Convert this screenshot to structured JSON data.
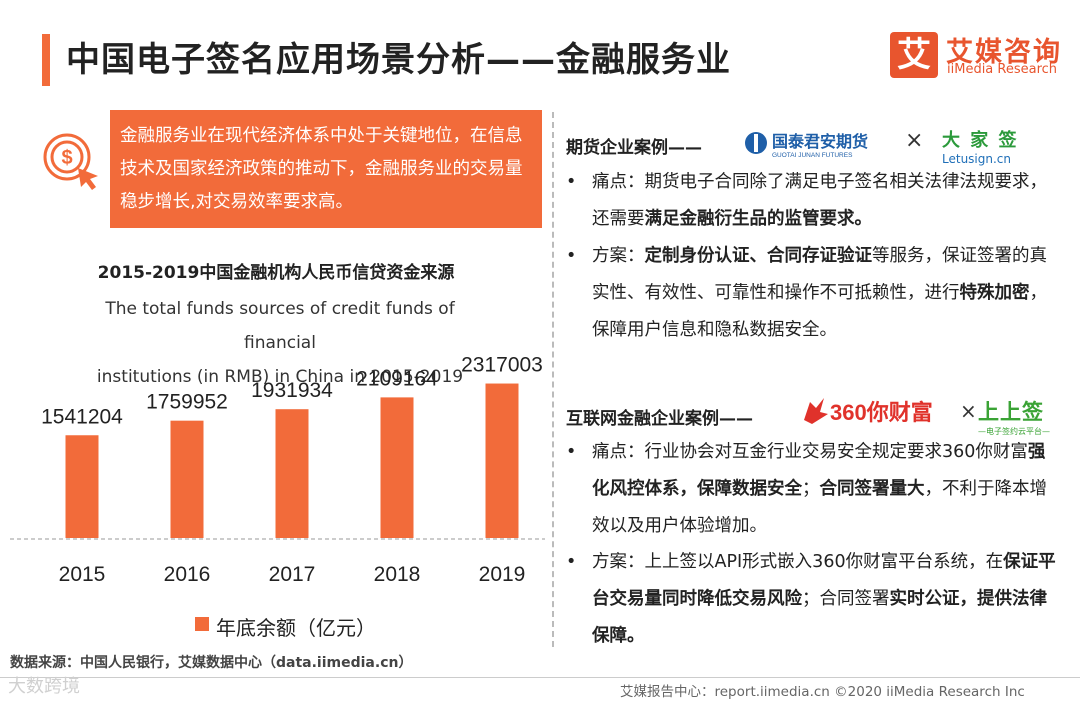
{
  "header": {
    "title": "中国电子签名应用场景分析——金融服务业",
    "logo_mark": "艾",
    "logo_cn": "艾媒咨询",
    "logo_en": "iiMedia Research"
  },
  "intro": {
    "text": "金融服务业在现代经济体系中处于关键地位，在信息技术及国家经济政策的推动下，金融服务业的交易量稳步增长,对交易效率要求高。",
    "icon": "money-click-icon"
  },
  "chart": {
    "title": "2015-2019中国金融机构人民币信贷资金来源",
    "subtitle_line1": "The total funds sources of credit funds of financial",
    "subtitle_line2": "institutions (in RMB) in China in 2015-2019",
    "legend": "年底余额（亿元）"
  },
  "chart_data": {
    "type": "bar",
    "categories": [
      "2015",
      "2016",
      "2017",
      "2018",
      "2019"
    ],
    "values": [
      1541204,
      1759952,
      1931934,
      2109164,
      2317003
    ],
    "series": [
      {
        "name": "年底余额（亿元）",
        "values": [
          1541204,
          1759952,
          1931934,
          2109164,
          2317003
        ]
      }
    ],
    "title": "2015-2019中国金融机构人民币信贷资金来源",
    "xlabel": "",
    "ylabel": "",
    "grid": false,
    "legend_position": "bottom",
    "color": "#f26b3a"
  },
  "case1": {
    "title": "期货企业案例——",
    "logo_left": "国泰君安期货",
    "logo_left_sub": "GUOTAI JUNAN FUTURES",
    "times": "×",
    "logo_right": "大 家 签",
    "logo_right_sub": "Letusign.cn",
    "bullets": [
      {
        "dot": "•",
        "parts": [
          {
            "t": "痛点：期货电子合同除了满足电子签名相关法律法规要求，还需要",
            "b": false
          },
          {
            "t": "满足金融衍生品的监管要求。",
            "b": true
          }
        ]
      },
      {
        "dot": "•",
        "parts": [
          {
            "t": "方案：",
            "b": false
          },
          {
            "t": "定制身份认证、合同存证验证",
            "b": true
          },
          {
            "t": "等服务，保证签署的真实性、有效性、可靠性和操作不可抵赖性，进行",
            "b": false
          },
          {
            "t": "特殊加密",
            "b": true
          },
          {
            "t": "，保障用户信息和隐私数据安全。",
            "b": false
          }
        ]
      }
    ]
  },
  "case2": {
    "title": "互联网金融企业案例——",
    "logo_left": "360你财富",
    "times": "×",
    "logo_right": "上上签",
    "logo_right_sub": "—电子签约云平台—",
    "bullets": [
      {
        "dot": "•",
        "parts": [
          {
            "t": "痛点：行业协会对互金行业交易安全规定要求360你财富",
            "b": false
          },
          {
            "t": "强化风控体系，保障数据安全",
            "b": true
          },
          {
            "t": "；",
            "b": false
          },
          {
            "t": "合同签署量大",
            "b": true
          },
          {
            "t": "，不利于降本增效以及用户体验增加。",
            "b": false
          }
        ]
      },
      {
        "dot": "•",
        "parts": [
          {
            "t": "方案：上上签以API形式嵌入360你财富平台系统，在",
            "b": false
          },
          {
            "t": "保证平台交易量同时降低交易风险",
            "b": true
          },
          {
            "t": "；合同签署",
            "b": false
          },
          {
            "t": "实时公证，提供法律保障。",
            "b": true
          }
        ]
      }
    ]
  },
  "footer": {
    "source": "数据来源：中国人民银行，艾媒数据中心（data.iimedia.cn）",
    "report": "艾媒报告中心：report.iimedia.cn    ©2020  iiMedia Research  Inc",
    "watermark": "大数跨境"
  }
}
